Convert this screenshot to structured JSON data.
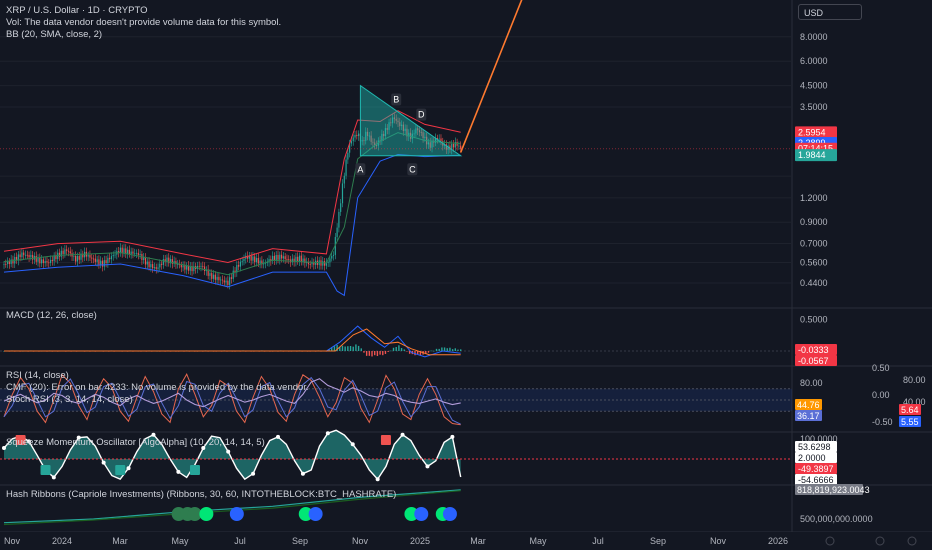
{
  "symbol_title": "XRP / U.S. Dollar · 1D · CRYPTO",
  "volume_note": "Vol: The data vendor doesn't provide volume data for this symbol.",
  "bb_legend": "BB (20, SMA, close, 2)",
  "macd_legend": "MACD (12, 26, close)",
  "rsi_legend": "RSI (14, close)",
  "cmf_legend": "CMF (20): Error on bar 4233: No volume is provided by the data vendor.",
  "stoch_legend": "Stoch RSI (3, 3, 14, 14, close)",
  "sqz_legend": "Squeeze Momentum Oscillator [AlgoAlpha] (10, 20, 14, 14, 5)",
  "hash_legend": "Hash Ribbons (Capriole Investments) (Ribbons, 30, 60, INTOTHEBLOCK:BTC_HASHRATE)",
  "currency": "USD",
  "colors": {
    "bg": "#131722",
    "up": "#26a69a",
    "down": "#ef5350",
    "bb_upper": "#f23645",
    "bb_lower": "#2962ff",
    "orange": "#ff7a2f",
    "triangle": "#1fb8b0"
  },
  "chart_data": [
    {
      "type": "line",
      "panel": "price",
      "scale": "log",
      "y_ticks": [
        "8.0000",
        "6.0000",
        "4.5000",
        "3.5000",
        "2.5954",
        "2.2899",
        "1.9844",
        "1.2000",
        "0.9000",
        "0.7000",
        "0.5600",
        "0.4400"
      ],
      "y_tick_values": [
        8.0,
        6.0,
        4.5,
        3.5,
        1.55,
        1.2,
        0.9,
        0.7,
        0.56,
        0.44
      ],
      "ylim": [
        0.36,
        11.5
      ],
      "x_labels": [
        "Nov",
        "2024",
        "Mar",
        "May",
        "Jul",
        "Sep",
        "Nov",
        "2025",
        "Mar",
        "May",
        "Jul",
        "Sep",
        "Nov",
        "2026"
      ],
      "price_tags": [
        {
          "label": "2.5954",
          "color": "#f23645",
          "value": 2.5954
        },
        {
          "label": "2.2899",
          "color": "#2962ff",
          "value": 2.2899
        },
        {
          "label": "07:14:15",
          "color": "#f23645",
          "value": 2.14
        },
        {
          "label": "1.9844",
          "color": "#26a69a",
          "value": 1.9844
        }
      ],
      "close_series": [
        [
          0,
          0.55
        ],
        [
          10,
          0.57
        ],
        [
          20,
          0.62
        ],
        [
          30,
          0.6
        ],
        [
          40,
          0.57
        ],
        [
          50,
          0.56
        ],
        [
          60,
          0.61
        ],
        [
          70,
          0.65
        ],
        [
          80,
          0.58
        ],
        [
          90,
          0.62
        ],
        [
          100,
          0.58
        ],
        [
          110,
          0.55
        ],
        [
          120,
          0.6
        ],
        [
          130,
          0.65
        ],
        [
          140,
          0.63
        ],
        [
          150,
          0.62
        ],
        [
          160,
          0.55
        ],
        [
          170,
          0.52
        ],
        [
          180,
          0.58
        ],
        [
          190,
          0.56
        ],
        [
          200,
          0.53
        ],
        [
          210,
          0.52
        ],
        [
          220,
          0.54
        ],
        [
          230,
          0.48
        ],
        [
          240,
          0.46
        ],
        [
          250,
          0.44
        ],
        [
          260,
          0.53
        ],
        [
          270,
          0.6
        ],
        [
          280,
          0.58
        ],
        [
          290,
          0.55
        ],
        [
          300,
          0.59
        ],
        [
          310,
          0.6
        ],
        [
          320,
          0.57
        ],
        [
          330,
          0.59
        ],
        [
          340,
          0.55
        ],
        [
          350,
          0.56
        ],
        [
          360,
          0.55
        ],
        [
          368,
          0.62
        ],
        [
          375,
          1.05
        ],
        [
          380,
          1.6
        ],
        [
          385,
          2.2
        ],
        [
          390,
          2.45
        ],
        [
          395,
          2.55
        ],
        [
          400,
          2.3
        ],
        [
          405,
          2.6
        ],
        [
          410,
          2.35
        ],
        [
          415,
          2.2
        ],
        [
          420,
          2.4
        ],
        [
          425,
          2.6
        ],
        [
          430,
          2.85
        ],
        [
          435,
          3.1
        ],
        [
          440,
          2.9
        ],
        [
          445,
          2.75
        ],
        [
          450,
          2.55
        ],
        [
          455,
          2.45
        ],
        [
          460,
          2.7
        ],
        [
          465,
          2.6
        ],
        [
          470,
          2.4
        ],
        [
          475,
          2.2
        ],
        [
          480,
          2.35
        ],
        [
          485,
          2.45
        ],
        [
          490,
          2.25
        ],
        [
          495,
          2.15
        ],
        [
          500,
          2.2
        ],
        [
          505,
          2.28
        ],
        [
          510,
          2.14
        ]
      ],
      "bb_upper": [
        [
          0,
          0.64
        ],
        [
          60,
          0.7
        ],
        [
          130,
          0.72
        ],
        [
          200,
          0.62
        ],
        [
          250,
          0.56
        ],
        [
          300,
          0.66
        ],
        [
          360,
          0.62
        ],
        [
          380,
          1.9
        ],
        [
          395,
          3.0
        ],
        [
          420,
          2.95
        ],
        [
          440,
          3.35
        ],
        [
          470,
          2.85
        ],
        [
          510,
          2.6
        ]
      ],
      "bb_lower": [
        [
          0,
          0.5
        ],
        [
          60,
          0.53
        ],
        [
          130,
          0.55
        ],
        [
          200,
          0.48
        ],
        [
          250,
          0.42
        ],
        [
          300,
          0.5
        ],
        [
          360,
          0.5
        ],
        [
          372,
          0.4
        ],
        [
          380,
          0.38
        ],
        [
          395,
          1.2
        ],
        [
          420,
          1.85
        ],
        [
          440,
          2.0
        ],
        [
          470,
          1.95
        ],
        [
          510,
          1.98
        ]
      ],
      "triangle_pattern": {
        "points": [
          [
            398,
            4.5
          ],
          [
            398,
            1.97
          ],
          [
            510,
            1.97
          ]
        ],
        "labels": [
          {
            "t": "A",
            "x": 398,
            "y": 1.68
          },
          {
            "t": "B",
            "x": 438,
            "y": 3.82
          },
          {
            "t": "C",
            "x": 456,
            "y": 1.68
          },
          {
            "t": "D",
            "x": 466,
            "y": 3.2
          }
        ]
      },
      "projection_line": [
        [
          510,
          2.05
        ],
        [
          580,
          13.0
        ]
      ]
    },
    {
      "type": "bar",
      "panel": "macd",
      "y_ticks": [
        "0.5000",
        "-0.0333",
        "-0.0567"
      ],
      "tags": [
        {
          "label": "-0.0333",
          "color": "#f23645"
        },
        {
          "label": "-0.0567",
          "color": "#f23645"
        }
      ],
      "macd_line": [
        [
          0,
          0.0
        ],
        [
          360,
          0.0
        ],
        [
          375,
          0.12
        ],
        [
          395,
          0.34
        ],
        [
          410,
          0.18
        ],
        [
          425,
          0.05
        ],
        [
          440,
          0.2
        ],
        [
          455,
          -0.02
        ],
        [
          470,
          -0.08
        ],
        [
          490,
          0.0
        ],
        [
          510,
          -0.03
        ]
      ],
      "signal_line": [
        [
          0,
          0.0
        ],
        [
          370,
          0.0
        ],
        [
          390,
          0.22
        ],
        [
          405,
          0.3
        ],
        [
          425,
          0.1
        ],
        [
          440,
          0.12
        ],
        [
          455,
          0.03
        ],
        [
          475,
          -0.05
        ],
        [
          510,
          -0.05
        ]
      ]
    },
    {
      "type": "line",
      "panel": "rsi_cmf_stoch",
      "y_ticks_left": [
        "80.00",
        "44.76",
        "36.17"
      ],
      "y_ticks_right": [
        "0.50",
        "0.00",
        "-0.50",
        "80.00",
        "40.00",
        "5.64",
        "5.55"
      ],
      "tags": [
        {
          "label": "44.76",
          "color": "#ff9800"
        },
        {
          "label": "36.17",
          "color": "#5b6fd6"
        },
        {
          "label": "5.64",
          "color": "#f23645"
        },
        {
          "label": "5.55",
          "color": "#2962ff"
        }
      ],
      "rsi_values": [
        48,
        55,
        60,
        52,
        45,
        50,
        62,
        58,
        48,
        44,
        52,
        60,
        55,
        46,
        40,
        52,
        58,
        50,
        44,
        48,
        55,
        62,
        50,
        42,
        38,
        45,
        52,
        58,
        52,
        46,
        50,
        56,
        60,
        54,
        48,
        44,
        60,
        82,
        88,
        76,
        70,
        64,
        72,
        66,
        58,
        55,
        62,
        58,
        50,
        46,
        44,
        48,
        52,
        46,
        42,
        44.76
      ],
      "stoch_k_values": [
        20,
        60,
        90,
        70,
        30,
        10,
        50,
        95,
        80,
        40,
        15,
        60,
        88,
        72,
        30,
        12,
        55,
        92,
        65,
        25,
        10,
        70,
        96,
        60,
        20,
        40,
        85,
        75,
        30,
        10,
        55,
        92,
        70,
        28,
        12,
        60,
        95,
        85,
        55,
        20,
        45,
        90,
        80,
        35,
        10,
        50,
        94,
        70,
        25,
        15,
        60,
        88,
        60,
        20,
        8,
        5.64
      ]
    },
    {
      "type": "area",
      "panel": "squeeze",
      "y_ticks": [
        "100.0000",
        "53.6298",
        "2.0000",
        "-49.3897",
        "-54.6666"
      ],
      "tags": [
        {
          "label": "53.6298",
          "color": "#ffffff"
        },
        {
          "label": "2.0000",
          "color": "#ffffff"
        },
        {
          "label": "-49.3897",
          "color": "#f23645"
        },
        {
          "label": "-54.6666",
          "color": "#ffffff"
        }
      ],
      "momentum": [
        30,
        55,
        62,
        48,
        10,
        -30,
        -50,
        -20,
        25,
        58,
        60,
        35,
        -10,
        -45,
        -55,
        -25,
        20,
        55,
        66,
        40,
        0,
        -35,
        -50,
        -15,
        30,
        62,
        58,
        20,
        -25,
        -55,
        -40,
        10,
        50,
        60,
        40,
        -5,
        -40,
        -30,
        35,
        70,
        78,
        65,
        40,
        10,
        -30,
        -55,
        -20,
        40,
        66,
        50,
        10,
        -20,
        -5,
        45,
        60,
        -49
      ]
    },
    {
      "type": "line",
      "panel": "hash_ribbons",
      "y_ticks": [
        "818,819,923.0043",
        "500,000,000.0000"
      ],
      "tags": [
        {
          "label": "818,819,923.0043",
          "color": "#787b86"
        }
      ],
      "hashrate_30": [
        [
          0,
          460000000.0
        ],
        [
          100,
          500000000.0
        ],
        [
          200,
          580000000.0
        ],
        [
          300,
          640000000.0
        ],
        [
          400,
          740000000.0
        ],
        [
          510,
          819000000.0
        ]
      ],
      "hashrate_60": [
        [
          0,
          440000000.0
        ],
        [
          100,
          490000000.0
        ],
        [
          200,
          560000000.0
        ],
        [
          300,
          620000000.0
        ],
        [
          400,
          720000000.0
        ],
        [
          510,
          810000000.0
        ]
      ],
      "markers": [
        {
          "x": 195,
          "color": "#2e7d4f"
        },
        {
          "x": 205,
          "color": "#2e7d4f"
        },
        {
          "x": 213,
          "color": "#2e7d4f"
        },
        {
          "x": 226,
          "color": "#00e676"
        },
        {
          "x": 260,
          "color": "#2962ff"
        },
        {
          "x": 337,
          "color": "#00e676"
        },
        {
          "x": 348,
          "color": "#2962ff"
        },
        {
          "x": 455,
          "color": "#00e676"
        },
        {
          "x": 466,
          "color": "#2962ff"
        },
        {
          "x": 490,
          "color": "#00e676"
        },
        {
          "x": 498,
          "color": "#2962ff"
        }
      ]
    }
  ]
}
